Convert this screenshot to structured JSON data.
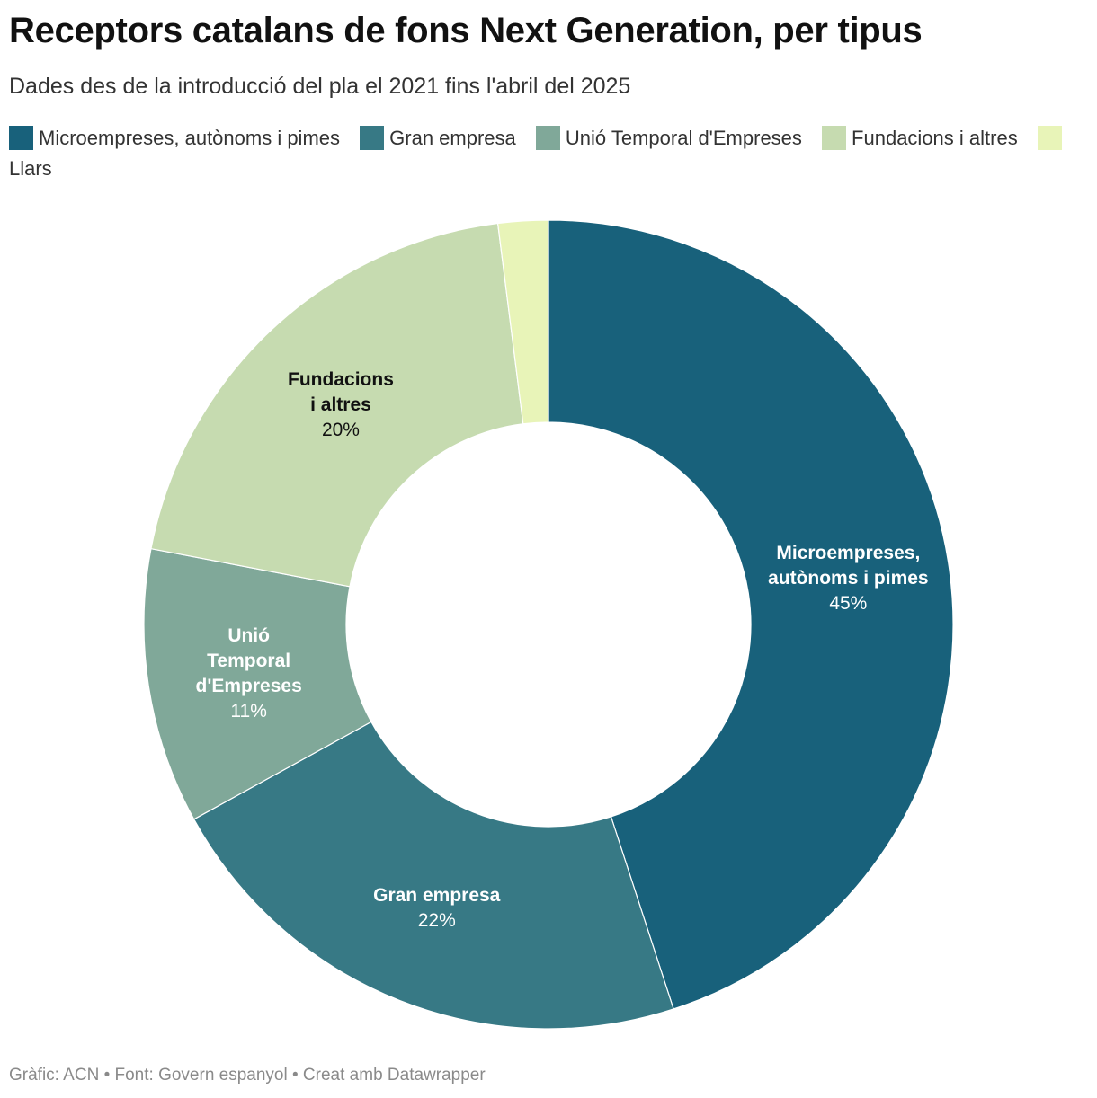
{
  "chart": {
    "title": "Receptors catalans de fons Next Generation, per tipus",
    "subtitle": "Dades des de la introducció del pla el 2021 fins l'abril del 2025",
    "footer": "Gràfic: ACN • Font: Govern espanyol • Creat amb Datawrapper"
  },
  "legend": [
    {
      "label": "Microempreses, autònoms i pimes",
      "color": "#18617b"
    },
    {
      "label": "Gran empresa",
      "color": "#377985"
    },
    {
      "label": "Unió Temporal d'Empreses",
      "color": "#80a899"
    },
    {
      "label": "Fundacions i altres",
      "color": "#c6dbb0"
    },
    {
      "label": "Llars",
      "color": "#e8f4b8"
    }
  ],
  "chart_data": {
    "type": "pie",
    "variant": "donut",
    "title": "Receptors catalans de fons Next Generation, per tipus",
    "subtitle": "Dades des de la introducció del pla el 2021 fins l'abril del 2025",
    "legend_position": "top",
    "slices": [
      {
        "name": "Microempreses, autònoms i pimes",
        "value": 45,
        "label": "45%",
        "label_lines": [
          "Microempreses,",
          "autònoms i pimes"
        ],
        "label_color": "#ffffff",
        "color": "#18617b"
      },
      {
        "name": "Gran empresa",
        "value": 22,
        "label": "22%",
        "label_lines": [
          "Gran empresa"
        ],
        "label_color": "#ffffff",
        "color": "#377985"
      },
      {
        "name": "Unió Temporal d'Empreses",
        "value": 11,
        "label": "11%",
        "label_lines": [
          "Unió",
          "Temporal",
          "d'Empreses"
        ],
        "label_color": "#ffffff",
        "color": "#80a899"
      },
      {
        "name": "Fundacions i altres",
        "value": 20,
        "label": "20%",
        "label_lines": [
          "Fundacions",
          "i altres"
        ],
        "label_color": "#111111",
        "color": "#c6dbb0"
      },
      {
        "name": "Llars",
        "value": 2,
        "label": "",
        "label_lines": [],
        "label_color": "#111111",
        "color": "#e8f4b8"
      }
    ]
  }
}
